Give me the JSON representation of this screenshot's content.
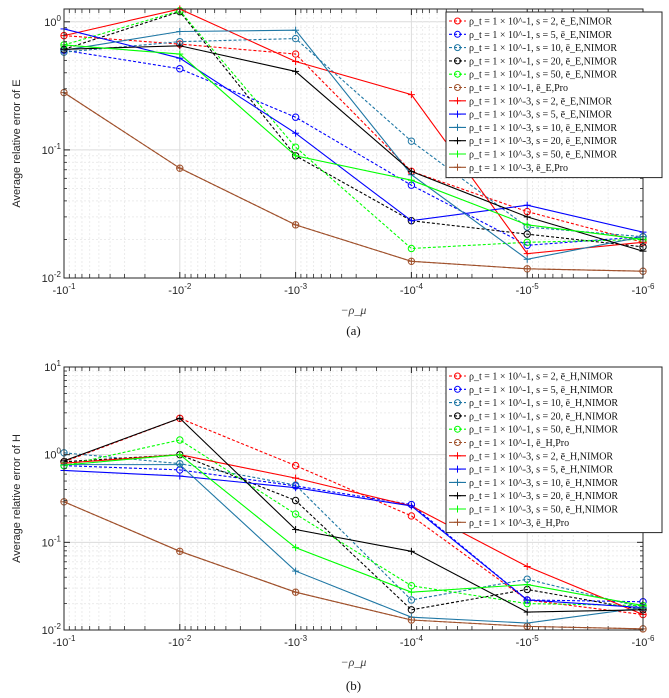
{
  "x_ticks": [
    "-10^-1",
    "-10^-2",
    "-10^-3",
    "-10^-4",
    "-10^-5",
    "-10^-6"
  ],
  "chart_data": [
    {
      "type": "line",
      "caption": "(a)",
      "title": "",
      "xlabel": "−ρ_μ",
      "ylabel": "Average relative error of E",
      "yscale": "log",
      "ylim": [
        0.01,
        1.4
      ],
      "y_ticks": [
        "10^-2",
        "10^-1",
        "10^0"
      ],
      "x": [
        -0.1,
        -0.01,
        -0.001,
        -0.0001,
        -1e-05,
        -1e-06
      ],
      "categories": [
        "-10^-1",
        "-10^-2",
        "-10^-3",
        "-10^-4",
        "-10^-5",
        "-10^-6"
      ],
      "grid": true,
      "legend_position": "top-right",
      "series": [
        {
          "name": "ρ_t = 1 × 10^-1, s = 2, ē_E,NIMOR",
          "color": "#ff0000",
          "style": "dashed",
          "marker": "o",
          "values": [
            0.78,
            0.67,
            0.56,
            0.068,
            0.033,
            0.019
          ]
        },
        {
          "name": "ρ_t = 1 × 10^-1, s = 5, ē_E,NIMOR",
          "color": "#0000ff",
          "style": "dashed",
          "marker": "o",
          "values": [
            0.6,
            0.43,
            0.18,
            0.053,
            0.018,
            0.021
          ]
        },
        {
          "name": "ρ_t = 1 × 10^-1, s = 10, ē_E,NIMOR",
          "color": "#1f77a4",
          "style": "dashed",
          "marker": "o",
          "values": [
            0.58,
            0.7,
            0.74,
            0.117,
            0.025,
            0.021
          ]
        },
        {
          "name": "ρ_t = 1 × 10^-1, s = 20, ē_E,NIMOR",
          "color": "#000000",
          "style": "dashed",
          "marker": "o",
          "values": [
            0.61,
            1.2,
            0.09,
            0.028,
            0.022,
            0.0175
          ]
        },
        {
          "name": "ρ_t = 1 × 10^-1, s = 50, ē_E,NIMOR",
          "color": "#00ff00",
          "style": "dashed",
          "marker": "o",
          "values": [
            0.66,
            1.22,
            0.105,
            0.017,
            0.019,
            0.02
          ]
        },
        {
          "name": "ρ_t = 1 × 10^-1, ē_E,Pro",
          "color": "#a0522d",
          "style": "dashed",
          "marker": "o",
          "values": [
            0.28,
            0.072,
            0.026,
            0.0135,
            0.0118,
            0.0113
          ]
        },
        {
          "name": "ρ_t = 1 × 10^-3, s = 2, ē_E,NIMOR",
          "color": "#ff0000",
          "style": "solid",
          "marker": "+",
          "values": [
            0.78,
            1.26,
            0.49,
            0.27,
            0.0155,
            0.019
          ]
        },
        {
          "name": "ρ_t = 1 × 10^-3, s = 5, ē_E,NIMOR",
          "color": "#0000ff",
          "style": "solid",
          "marker": "+",
          "values": [
            0.88,
            0.52,
            0.135,
            0.028,
            0.037,
            0.0228
          ]
        },
        {
          "name": "ρ_t = 1 × 10^-3, s = 10, ē_E,NIMOR",
          "color": "#1f77a4",
          "style": "solid",
          "marker": "+",
          "values": [
            0.6,
            0.84,
            0.86,
            0.064,
            0.014,
            0.021
          ]
        },
        {
          "name": "ρ_t = 1 × 10^-3, s = 20, ē_E,NIMOR",
          "color": "#000000",
          "style": "solid",
          "marker": "+",
          "values": [
            0.61,
            0.65,
            0.41,
            0.068,
            0.03,
            0.0162
          ]
        },
        {
          "name": "ρ_t = 1 × 10^-3, s = 50, ē_E,NIMOR",
          "color": "#00ff00",
          "style": "solid",
          "marker": "+",
          "values": [
            0.66,
            0.56,
            0.09,
            0.058,
            0.026,
            0.02
          ]
        },
        {
          "name": "ρ_t = 1 × 10^-3, ē_E,Pro",
          "color": "#a0522d",
          "style": "solid",
          "marker": "+",
          "values": [
            0.28,
            0.072,
            0.026,
            0.0135,
            0.0118,
            0.0113
          ]
        }
      ]
    },
    {
      "type": "line",
      "caption": "(b)",
      "title": "",
      "xlabel": "−ρ_μ",
      "ylabel": "Average relative error of H",
      "yscale": "log",
      "ylim": [
        0.01,
        10
      ],
      "y_ticks": [
        "10^-2",
        "10^-1",
        "10^0",
        "10^1"
      ],
      "x": [
        -0.1,
        -0.01,
        -0.001,
        -0.0001,
        -1e-05,
        -1e-06
      ],
      "categories": [
        "-10^-1",
        "-10^-2",
        "-10^-3",
        "-10^-4",
        "-10^-5",
        "-10^-6"
      ],
      "grid": true,
      "legend_position": "top-right",
      "series": [
        {
          "name": "ρ_t = 1 × 10^-1, s = 2, ē_H,NIMOR",
          "color": "#ff0000",
          "style": "dashed",
          "marker": "o",
          "values": [
            0.83,
            2.6,
            0.75,
            0.2,
            0.022,
            0.015
          ]
        },
        {
          "name": "ρ_t = 1 × 10^-1, s = 5, ē_H,NIMOR",
          "color": "#0000ff",
          "style": "dashed",
          "marker": "o",
          "values": [
            0.75,
            0.67,
            0.44,
            0.27,
            0.022,
            0.021
          ]
        },
        {
          "name": "ρ_t = 1 × 10^-1, s = 10, ē_H,NIMOR",
          "color": "#1f77a4",
          "style": "dashed",
          "marker": "o",
          "values": [
            1.05,
            0.79,
            0.45,
            0.022,
            0.038,
            0.018
          ]
        },
        {
          "name": "ρ_t = 1 × 10^-1, s = 20, ē_H,NIMOR",
          "color": "#000000",
          "style": "dashed",
          "marker": "o",
          "values": [
            0.83,
            1.0,
            0.3,
            0.017,
            0.029,
            0.017
          ]
        },
        {
          "name": "ρ_t = 1 × 10^-1, s = 50, ē_H,NIMOR",
          "color": "#00ff00",
          "style": "dashed",
          "marker": "o",
          "values": [
            0.75,
            1.47,
            0.21,
            0.032,
            0.02,
            0.019
          ]
        },
        {
          "name": "ρ_t = 1 × 10^-1, ē_H,Pro",
          "color": "#a0522d",
          "style": "dashed",
          "marker": "o",
          "values": [
            0.29,
            0.079,
            0.027,
            0.013,
            0.011,
            0.0103
          ]
        },
        {
          "name": "ρ_t = 1 × 10^-3, s = 2, ē_H,NIMOR",
          "color": "#ff0000",
          "style": "solid",
          "marker": "+",
          "values": [
            0.8,
            1.0,
            0.54,
            0.26,
            0.053,
            0.015
          ]
        },
        {
          "name": "ρ_t = 1 × 10^-3, s = 5, ē_H,NIMOR",
          "color": "#0000ff",
          "style": "solid",
          "marker": "+",
          "values": [
            0.66,
            0.57,
            0.42,
            0.26,
            0.022,
            0.018
          ]
        },
        {
          "name": "ρ_t = 1 × 10^-3, s = 10, ē_H,NIMOR",
          "color": "#1f77a4",
          "style": "solid",
          "marker": "+",
          "values": [
            0.77,
            0.77,
            0.047,
            0.014,
            0.012,
            0.018
          ]
        },
        {
          "name": "ρ_t = 1 × 10^-3, s = 20, ē_H,NIMOR",
          "color": "#000000",
          "style": "solid",
          "marker": "+",
          "values": [
            0.85,
            2.6,
            0.14,
            0.079,
            0.016,
            0.017
          ]
        },
        {
          "name": "ρ_t = 1 × 10^-3, s = 50, ē_H,NIMOR",
          "color": "#00ff00",
          "style": "solid",
          "marker": "+",
          "values": [
            0.76,
            1.0,
            0.087,
            0.027,
            0.033,
            0.019
          ]
        },
        {
          "name": "ρ_t = 1 × 10^-3, ē_H,Pro",
          "color": "#a0522d",
          "style": "solid",
          "marker": "+",
          "values": [
            0.29,
            0.079,
            0.027,
            0.013,
            0.011,
            0.0103
          ]
        }
      ]
    }
  ]
}
